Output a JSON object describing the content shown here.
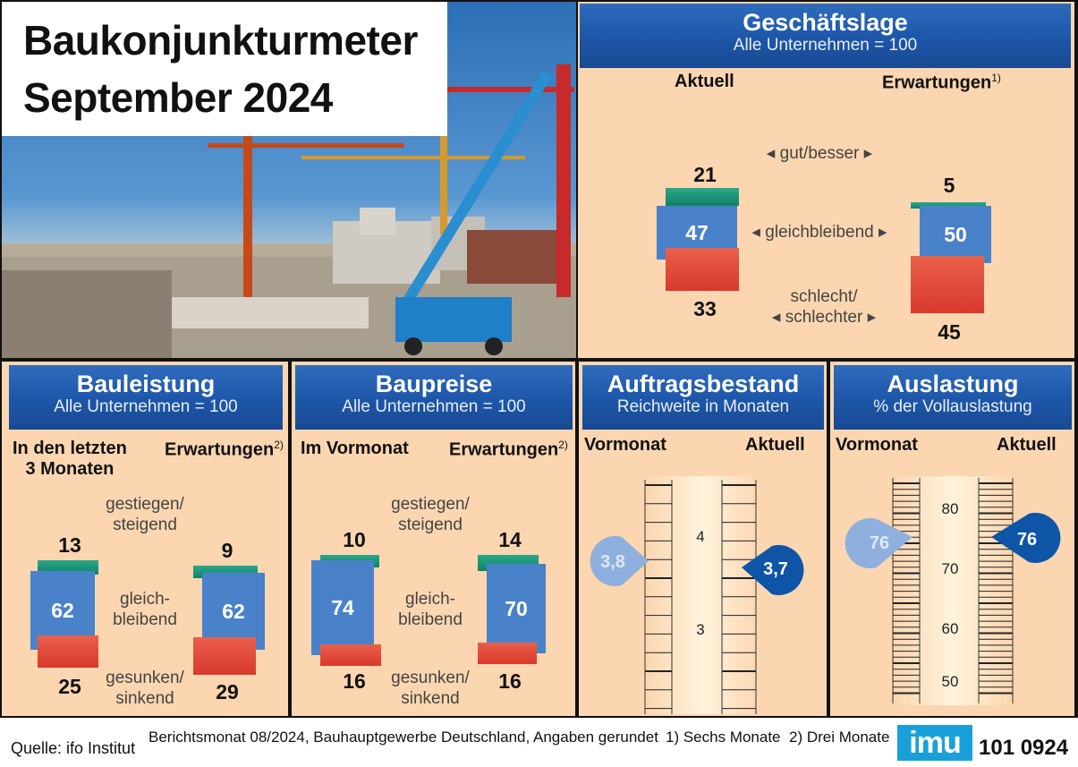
{
  "title_line1": "Baukonjunkturmeter",
  "title_line2": "September 2024",
  "geschaeftslage": {
    "title": "Geschäftslage",
    "subtitle": "Alle Unternehmen = 100",
    "col_left": "Aktuell",
    "col_right": "Erwartungen",
    "col_right_note": "1)",
    "label_top": "gut/besser",
    "label_mid": "gleichbleibend",
    "label_bot1": "schlecht/",
    "label_bot2": "schlechter",
    "left": {
      "top": "21",
      "mid": "47",
      "bot": "33"
    },
    "right": {
      "top": "5",
      "mid": "50",
      "bot": "45"
    }
  },
  "bauleistung": {
    "title": "Bauleistung",
    "subtitle": "Alle Unternehmen = 100",
    "col_left1": "In den letzten",
    "col_left2": "3 Monaten",
    "col_right": "Erwartungen",
    "col_right_note": "2)",
    "label_top1": "gestiegen/",
    "label_top2": "steigend",
    "label_mid1": "gleich-",
    "label_mid2": "bleibend",
    "label_bot1": "gesunken/",
    "label_bot2": "sinkend",
    "left": {
      "top": "13",
      "mid": "62",
      "bot": "25"
    },
    "right": {
      "top": "9",
      "mid": "62",
      "bot": "29"
    }
  },
  "baupreise": {
    "title": "Baupreise",
    "subtitle": "Alle Unternehmen = 100",
    "col_left": "Im Vormonat",
    "col_right": "Erwartungen",
    "col_right_note": "2)",
    "label_top1": "gestiegen/",
    "label_top2": "steigend",
    "label_mid1": "gleich-",
    "label_mid2": "bleibend",
    "label_bot1": "gesunken/",
    "label_bot2": "sinkend",
    "left": {
      "top": "10",
      "mid": "74",
      "bot": "16"
    },
    "right": {
      "top": "14",
      "mid": "70",
      "bot": "16"
    }
  },
  "auftragsbestand": {
    "title": "Auftragsbestand",
    "subtitle": "Reichweite in Monaten",
    "col_left": "Vormonat",
    "col_right": "Aktuell",
    "tick_4": "4",
    "tick_3": "3",
    "prev": "3,8",
    "curr": "3,7"
  },
  "auslastung": {
    "title": "Auslastung",
    "subtitle": "% der Vollauslastung",
    "col_left": "Vormonat",
    "col_right": "Aktuell",
    "tick_80": "80",
    "tick_70": "70",
    "tick_60": "60",
    "tick_50": "50",
    "prev": "76",
    "curr": "76"
  },
  "footer": {
    "source": "Quelle: ifo Institut",
    "note": "Berichtsmonat 08/2024, Bauhauptgewerbe Deutschland, Angaben gerundet",
    "fn1": "1) Sechs Monate",
    "fn2": "2) Drei Monate",
    "logo": "imu",
    "code": "101 0924"
  },
  "chart_data": [
    {
      "type": "bar",
      "title": "Geschäftslage",
      "subtitle": "Alle Unternehmen = 100",
      "categories": [
        "Aktuell",
        "Erwartungen"
      ],
      "series": [
        {
          "name": "gut/besser",
          "values": [
            21,
            5
          ]
        },
        {
          "name": "gleichbleibend",
          "values": [
            47,
            50
          ]
        },
        {
          "name": "schlecht/schlechter",
          "values": [
            33,
            45
          ]
        }
      ]
    },
    {
      "type": "bar",
      "title": "Bauleistung",
      "subtitle": "Alle Unternehmen = 100",
      "categories": [
        "In den letzten 3 Monaten",
        "Erwartungen"
      ],
      "series": [
        {
          "name": "gestiegen/steigend",
          "values": [
            13,
            9
          ]
        },
        {
          "name": "gleichbleibend",
          "values": [
            62,
            62
          ]
        },
        {
          "name": "gesunken/sinkend",
          "values": [
            25,
            29
          ]
        }
      ]
    },
    {
      "type": "bar",
      "title": "Baupreise",
      "subtitle": "Alle Unternehmen = 100",
      "categories": [
        "Im Vormonat",
        "Erwartungen"
      ],
      "series": [
        {
          "name": "gestiegen/steigend",
          "values": [
            10,
            14
          ]
        },
        {
          "name": "gleichbleibend",
          "values": [
            74,
            70
          ]
        },
        {
          "name": "gesunken/sinkend",
          "values": [
            16,
            16
          ]
        }
      ]
    },
    {
      "type": "scatter",
      "title": "Auftragsbestand",
      "subtitle": "Reichweite in Monaten",
      "categories": [
        "Vormonat",
        "Aktuell"
      ],
      "values": [
        3.8,
        3.7
      ],
      "ylim": [
        2.5,
        4.5
      ]
    },
    {
      "type": "scatter",
      "title": "Auslastung",
      "subtitle": "% der Vollauslastung",
      "categories": [
        "Vormonat",
        "Aktuell"
      ],
      "values": [
        76,
        76
      ],
      "ylim": [
        50,
        83
      ]
    }
  ]
}
